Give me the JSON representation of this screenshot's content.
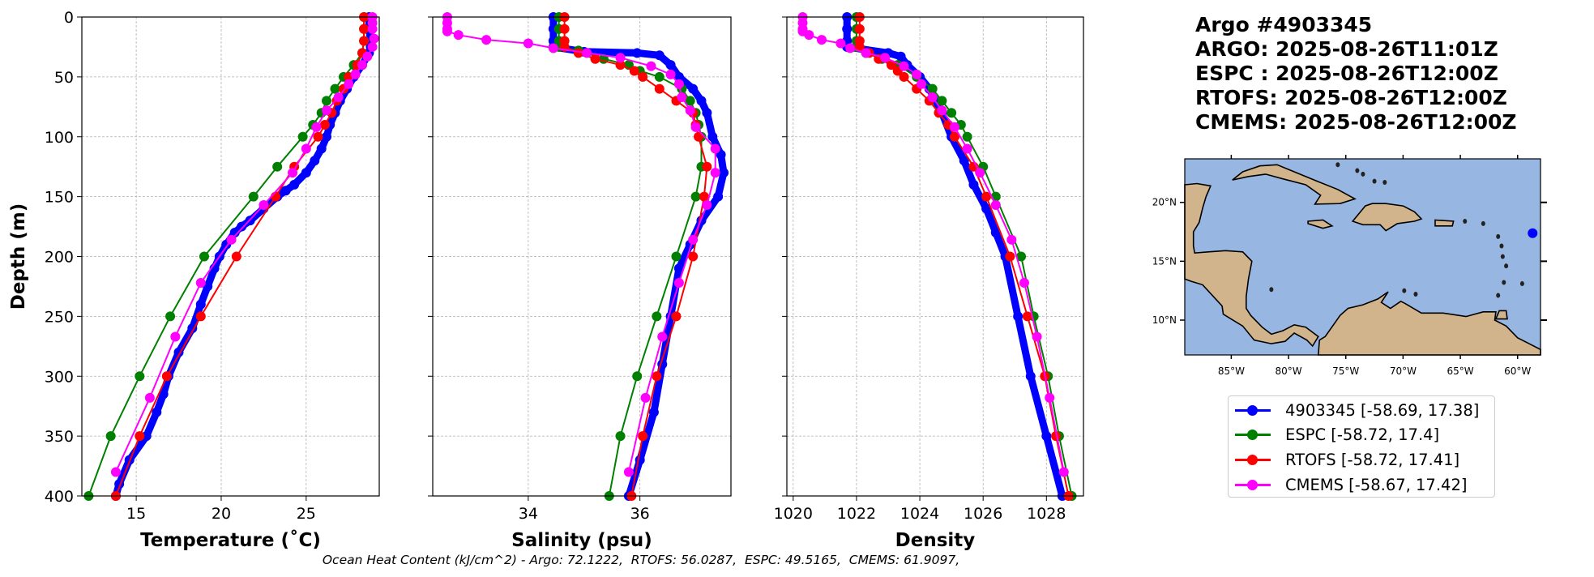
{
  "title": {
    "lines": [
      "Argo #4903345",
      "ARGO: 2025-08-26T11:01Z",
      "ESPC : 2025-08-26T12:00Z",
      "RTOFS: 2025-08-26T12:00Z",
      "CMEMS: 2025-08-26T12:00Z"
    ]
  },
  "footer": "Ocean Heat Content (kJ/cm^2) - Argo: 72.1222,  RTOFS: 56.0287,  ESPC: 49.5165,  CMEMS: 61.9097,",
  "legend": [
    {
      "label": "4903345 [-58.69, 17.38]",
      "color": "#0000ff"
    },
    {
      "label": "ESPC [-58.72, 17.4]",
      "color": "#008000"
    },
    {
      "label": "RTOFS [-58.72, 17.41]",
      "color": "#ff0000"
    },
    {
      "label": "CMEMS [-58.67, 17.42]",
      "color": "#ff00ff"
    }
  ],
  "map": {
    "lat_ticks": [
      "20°N",
      "15°N",
      "10°N"
    ],
    "lat_values": [
      20,
      15,
      10
    ],
    "lon_ticks": [
      "85°W",
      "80°W",
      "75°W",
      "70°W",
      "65°W",
      "60°W"
    ],
    "lon_values": [
      -85,
      -80,
      -75,
      -70,
      -65,
      -60
    ],
    "extent": {
      "lon": [
        -89.06,
        -58.0
      ],
      "lat": [
        7.04,
        23.7
      ]
    },
    "float_position": {
      "lon": -58.69,
      "lat": 17.38
    },
    "ocean_color": "#97b6e1",
    "land_color": "#d2b48c"
  },
  "chart_data": [
    {
      "type": "line",
      "xlabel": "Temperature (˚C)",
      "ylabel": "Depth (m)",
      "xlim": [
        11.8,
        29.3
      ],
      "ylim": [
        400,
        0
      ],
      "xticks": [
        15,
        20,
        25
      ],
      "yticks": [
        0,
        50,
        100,
        150,
        200,
        250,
        300,
        350,
        400
      ],
      "grid": true,
      "series": [
        {
          "name": "Argo",
          "color": "#0000ff",
          "depth": [
            0,
            10,
            20,
            25,
            30,
            40,
            50,
            60,
            70,
            80,
            90,
            100,
            110,
            120,
            130,
            140,
            145,
            150,
            160,
            170,
            175,
            180,
            190,
            200,
            210,
            225,
            240,
            260,
            280,
            300,
            315,
            330,
            350,
            370,
            390,
            400
          ],
          "values": [
            28.7,
            28.7,
            28.8,
            28.8,
            28.7,
            28.3,
            27.8,
            27.4,
            27.0,
            26.7,
            26.4,
            26.2,
            25.9,
            25.5,
            25.0,
            24.3,
            23.8,
            23.3,
            22.5,
            21.7,
            21.2,
            20.8,
            20.3,
            19.9,
            19.6,
            19.2,
            18.8,
            18.3,
            17.5,
            16.9,
            16.6,
            16.2,
            15.6,
            14.6,
            14.0,
            13.8
          ]
        },
        {
          "name": "ESPC",
          "color": "#008000",
          "depth": [
            0,
            10,
            20,
            30,
            40,
            50,
            60,
            70,
            80,
            90,
            100,
            125,
            150,
            200,
            250,
            300,
            350,
            400
          ],
          "values": [
            28.4,
            28.4,
            28.4,
            28.3,
            27.8,
            27.2,
            26.7,
            26.2,
            25.9,
            25.4,
            24.8,
            23.3,
            21.9,
            19.0,
            17.0,
            15.2,
            13.5,
            12.2
          ]
        },
        {
          "name": "RTOFS",
          "color": "#ff0000",
          "depth": [
            0,
            10,
            20,
            30,
            40,
            50,
            60,
            70,
            80,
            90,
            100,
            125,
            150,
            200,
            250,
            300,
            350,
            400
          ],
          "values": [
            28.4,
            28.4,
            28.4,
            28.3,
            28.0,
            27.5,
            27.2,
            26.8,
            26.5,
            26.1,
            25.7,
            24.3,
            23.2,
            20.9,
            18.8,
            16.8,
            15.2,
            13.8
          ]
        },
        {
          "name": "CMEMS",
          "color": "#ff00ff",
          "depth": [
            0,
            5,
            10,
            18,
            25,
            33,
            40,
            48,
            56,
            67,
            78,
            92,
            110,
            130,
            157,
            186,
            222,
            267,
            318,
            380
          ],
          "values": [
            28.9,
            28.9,
            28.9,
            29.0,
            28.9,
            28.6,
            28.3,
            27.9,
            27.5,
            26.9,
            26.2,
            25.6,
            25.0,
            24.2,
            22.5,
            20.6,
            18.8,
            17.3,
            15.8,
            13.8
          ]
        }
      ]
    },
    {
      "type": "line",
      "xlabel": "Salinity (psu)",
      "xlim": [
        32.29,
        37.63
      ],
      "ylim": [
        400,
        0
      ],
      "xticks": [
        34,
        36
      ],
      "yticks": [
        0,
        50,
        100,
        150,
        200,
        250,
        300,
        350,
        400
      ],
      "grid": true,
      "series": [
        {
          "name": "Argo",
          "color": "#0000ff",
          "depth": [
            0,
            10,
            20,
            25,
            29,
            30,
            32,
            40,
            50,
            60,
            70,
            80,
            100,
            115,
            130,
            150,
            170,
            190,
            210,
            250,
            290,
            330,
            370,
            400
          ],
          "values": [
            34.45,
            34.45,
            34.45,
            34.45,
            35.0,
            35.95,
            36.35,
            36.55,
            36.7,
            36.95,
            37.1,
            37.2,
            37.3,
            37.45,
            37.5,
            37.4,
            37.1,
            36.9,
            36.7,
            36.55,
            36.4,
            36.25,
            36.0,
            35.8
          ]
        },
        {
          "name": "ESPC",
          "color": "#008000",
          "depth": [
            0,
            10,
            20,
            25,
            28,
            35,
            40,
            45,
            50,
            60,
            70,
            80,
            90,
            100,
            125,
            150,
            200,
            250,
            300,
            350,
            400
          ],
          "values": [
            34.55,
            34.55,
            34.55,
            34.55,
            34.9,
            35.35,
            35.8,
            36.0,
            36.35,
            36.75,
            36.9,
            37.0,
            37.05,
            37.1,
            37.1,
            37.0,
            36.65,
            36.3,
            35.95,
            35.65,
            35.45
          ]
        },
        {
          "name": "RTOFS",
          "color": "#ff0000",
          "depth": [
            0,
            10,
            20,
            25,
            30,
            35,
            40,
            45,
            50,
            60,
            70,
            80,
            90,
            100,
            125,
            150,
            200,
            250,
            300,
            350,
            400
          ],
          "values": [
            34.65,
            34.65,
            34.65,
            34.65,
            34.9,
            35.2,
            35.65,
            35.9,
            36.05,
            36.35,
            36.65,
            36.95,
            37.0,
            37.05,
            37.2,
            37.15,
            36.95,
            36.65,
            36.3,
            36.05,
            35.85
          ]
        },
        {
          "name": "CMEMS",
          "color": "#ff00ff",
          "depth": [
            0,
            5,
            10,
            12,
            15,
            19,
            22,
            26,
            30,
            34,
            41,
            48,
            56,
            67,
            78,
            92,
            110,
            130,
            157,
            186,
            222,
            267,
            318,
            380
          ],
          "values": [
            32.55,
            32.55,
            32.55,
            32.55,
            32.75,
            33.25,
            34.0,
            34.45,
            35.05,
            35.65,
            36.2,
            36.55,
            36.7,
            36.75,
            36.9,
            37.0,
            37.35,
            37.35,
            37.2,
            36.95,
            36.7,
            36.4,
            36.1,
            35.8
          ]
        }
      ]
    },
    {
      "type": "line",
      "xlabel": "Density",
      "xlim": [
        1019.8,
        1029.17
      ],
      "ylim": [
        400,
        0
      ],
      "xticks": [
        1020,
        1022,
        1024,
        1026,
        1028
      ],
      "yticks": [
        0,
        50,
        100,
        150,
        200,
        250,
        300,
        350,
        400
      ],
      "grid": true,
      "series": [
        {
          "name": "Argo",
          "color": "#0000ff",
          "depth": [
            0,
            10,
            20,
            25,
            30,
            33,
            40,
            50,
            60,
            80,
            100,
            120,
            140,
            160,
            180,
            200,
            250,
            300,
            350,
            400
          ],
          "values": [
            1021.7,
            1021.7,
            1021.7,
            1021.7,
            1023.0,
            1023.4,
            1023.6,
            1024.0,
            1024.3,
            1024.7,
            1025.0,
            1025.4,
            1025.7,
            1026.1,
            1026.4,
            1026.7,
            1027.1,
            1027.5,
            1028.0,
            1028.5
          ]
        },
        {
          "name": "ESPC",
          "color": "#008000",
          "depth": [
            0,
            10,
            20,
            25,
            30,
            35,
            40,
            50,
            60,
            70,
            80,
            90,
            100,
            125,
            150,
            200,
            250,
            300,
            350,
            400
          ],
          "values": [
            1022.0,
            1022.0,
            1022.0,
            1022.0,
            1022.3,
            1022.8,
            1023.3,
            1023.9,
            1024.4,
            1024.7,
            1025.0,
            1025.3,
            1025.5,
            1026.0,
            1026.4,
            1027.2,
            1027.6,
            1028.05,
            1028.4,
            1028.8
          ]
        },
        {
          "name": "RTOFS",
          "color": "#ff0000",
          "depth": [
            0,
            10,
            20,
            25,
            30,
            35,
            40,
            45,
            50,
            60,
            70,
            80,
            90,
            100,
            125,
            150,
            200,
            250,
            300,
            350,
            400
          ],
          "values": [
            1022.1,
            1022.1,
            1022.1,
            1022.1,
            1022.4,
            1022.7,
            1023.1,
            1023.3,
            1023.5,
            1023.9,
            1024.3,
            1024.6,
            1024.9,
            1025.1,
            1025.7,
            1026.1,
            1026.85,
            1027.4,
            1027.95,
            1028.3,
            1028.7
          ]
        },
        {
          "name": "CMEMS",
          "color": "#ff00ff",
          "depth": [
            0,
            5,
            10,
            12,
            15,
            19,
            22,
            26,
            30,
            34,
            41,
            48,
            56,
            67,
            78,
            92,
            110,
            130,
            157,
            186,
            222,
            267,
            318,
            380
          ],
          "values": [
            1020.3,
            1020.3,
            1020.3,
            1020.3,
            1020.5,
            1020.9,
            1021.5,
            1021.8,
            1022.3,
            1022.9,
            1023.5,
            1023.9,
            1024.05,
            1024.4,
            1024.7,
            1025.1,
            1025.5,
            1025.9,
            1026.4,
            1026.9,
            1027.3,
            1027.7,
            1028.1,
            1028.55
          ]
        }
      ]
    }
  ]
}
